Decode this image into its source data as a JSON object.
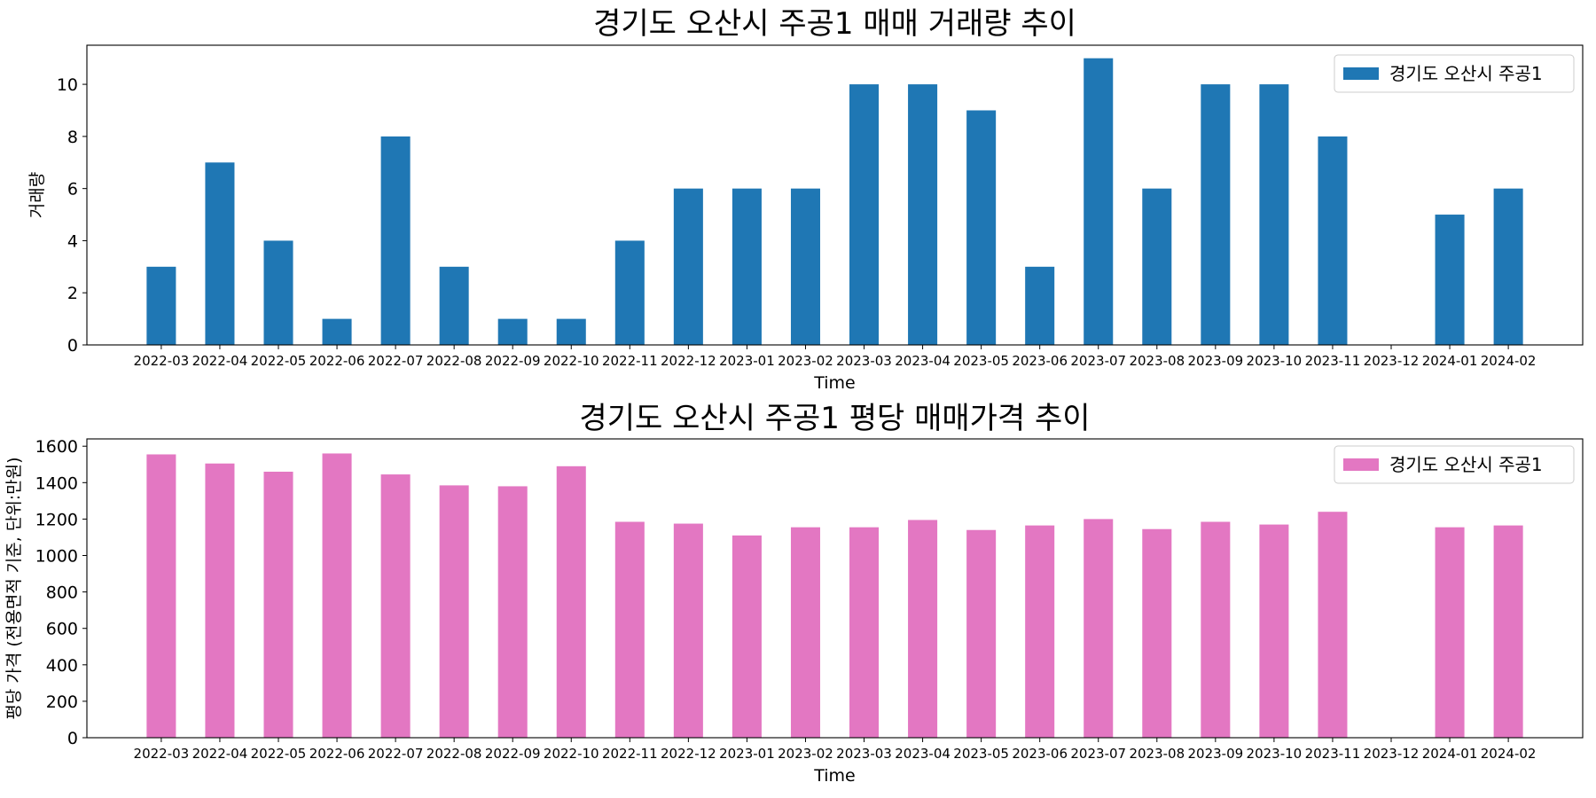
{
  "chart_data": [
    {
      "type": "bar",
      "title": "경기도 오산시 주공1 매매 거래량 추이",
      "xlabel": "Time",
      "ylabel": "거래량",
      "ylim": [
        0,
        11.5
      ],
      "yticks": [
        0,
        2,
        4,
        6,
        8,
        10
      ],
      "grid": false,
      "legend_position": "top-right",
      "categories": [
        "2022-03",
        "2022-04",
        "2022-05",
        "2022-06",
        "2022-07",
        "2022-08",
        "2022-09",
        "2022-10",
        "2022-11",
        "2022-12",
        "2023-01",
        "2023-02",
        "2023-03",
        "2023-04",
        "2023-05",
        "2023-06",
        "2023-07",
        "2023-08",
        "2023-09",
        "2023-10",
        "2023-11",
        "2023-12",
        "2024-01",
        "2024-02"
      ],
      "series": [
        {
          "name": "경기도 오산시 주공1",
          "color": "#1f77b4",
          "values": [
            3,
            7,
            4,
            1,
            8,
            3,
            1,
            1,
            4,
            6,
            6,
            6,
            10,
            10,
            9,
            3,
            11,
            6,
            10,
            10,
            8,
            null,
            5,
            6
          ]
        }
      ]
    },
    {
      "type": "bar",
      "title": "경기도 오산시 주공1 평당 매매가격 추이",
      "xlabel": "Time",
      "ylabel": "평당 가격 (전용면적 기준, 단위:만원)",
      "ylim": [
        0,
        1640
      ],
      "yticks": [
        0,
        200,
        400,
        600,
        800,
        1000,
        1200,
        1400,
        1600
      ],
      "grid": false,
      "legend_position": "top-right",
      "categories": [
        "2022-03",
        "2022-04",
        "2022-05",
        "2022-06",
        "2022-07",
        "2022-08",
        "2022-09",
        "2022-10",
        "2022-11",
        "2022-12",
        "2023-01",
        "2023-02",
        "2023-03",
        "2023-04",
        "2023-05",
        "2023-06",
        "2023-07",
        "2023-08",
        "2023-09",
        "2023-10",
        "2023-11",
        "2023-12",
        "2024-01",
        "2024-02"
      ],
      "series": [
        {
          "name": "경기도 오산시 주공1",
          "color": "#e377c2",
          "values": [
            1555,
            1505,
            1460,
            1560,
            1445,
            1385,
            1380,
            1490,
            1185,
            1175,
            1110,
            1155,
            1155,
            1195,
            1140,
            1165,
            1200,
            1145,
            1185,
            1170,
            1240,
            null,
            1155,
            1165
          ]
        }
      ]
    }
  ]
}
